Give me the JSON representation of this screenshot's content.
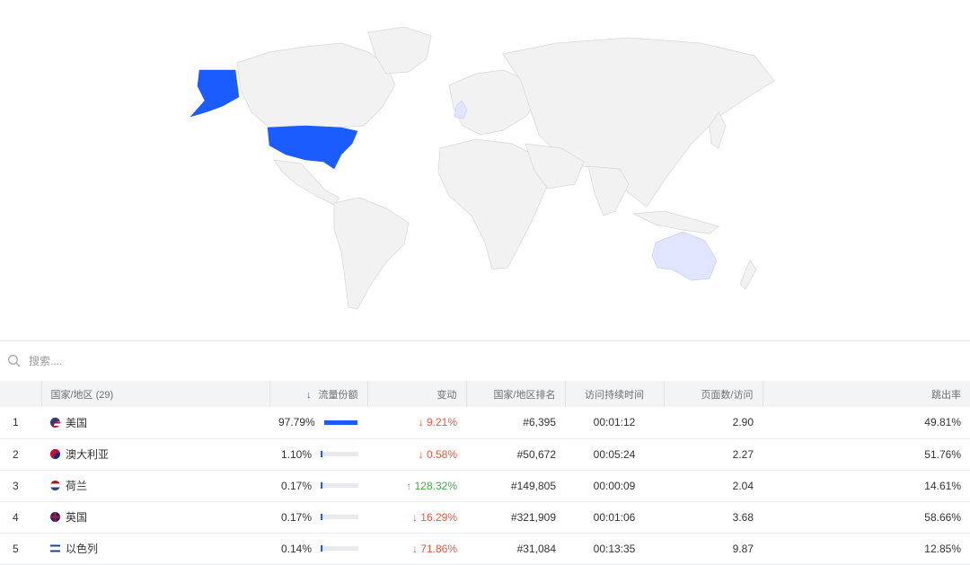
{
  "map": {
    "highlight_color": "#1a5cff",
    "light_highlight_color": "#e2e5ff",
    "land_color": "#f2f2f2",
    "border_color": "#d6d6d6"
  },
  "search": {
    "placeholder": "搜索....",
    "icon": "search-icon"
  },
  "table": {
    "headers": {
      "country": "国家/地区 (29)",
      "share": "流量份额",
      "sort_icon": "arrow-down-icon",
      "change": "变动",
      "rank": "国家/地区排名",
      "duration": "访问持续时间",
      "pages": "页面数/访问",
      "bounce": "跳出率"
    },
    "rows": [
      {
        "index": "1",
        "country": "美国",
        "flag": "us-flag-icon",
        "share": "97.79%",
        "share_value": 97.79,
        "change": "↓ 9.21%",
        "change_dir": "down",
        "rank": "#6,395",
        "duration": "00:01:12",
        "pages": "2.90",
        "bounce": "49.81%"
      },
      {
        "index": "2",
        "country": "澳大利亚",
        "flag": "au-flag-icon",
        "share": "1.10%",
        "share_value": 1.1,
        "change": "↓ 0.58%",
        "change_dir": "down",
        "rank": "#50,672",
        "duration": "00:05:24",
        "pages": "2.27",
        "bounce": "51.76%"
      },
      {
        "index": "3",
        "country": "荷兰",
        "flag": "nl-flag-icon",
        "share": "0.17%",
        "share_value": 0.17,
        "change": "↑ 128.32%",
        "change_dir": "up",
        "rank": "#149,805",
        "duration": "00:00:09",
        "pages": "2.04",
        "bounce": "14.61%"
      },
      {
        "index": "4",
        "country": "英国",
        "flag": "gb-flag-icon",
        "share": "0.17%",
        "share_value": 0.17,
        "change": "↓ 16.29%",
        "change_dir": "down",
        "rank": "#321,909",
        "duration": "00:01:06",
        "pages": "3.68",
        "bounce": "58.66%"
      },
      {
        "index": "5",
        "country": "以色列",
        "flag": "il-flag-icon",
        "share": "0.14%",
        "share_value": 0.14,
        "change": "↓ 71.86%",
        "change_dir": "down",
        "rank": "#31,084",
        "duration": "00:13:35",
        "pages": "9.87",
        "bounce": "12.85%"
      }
    ]
  }
}
